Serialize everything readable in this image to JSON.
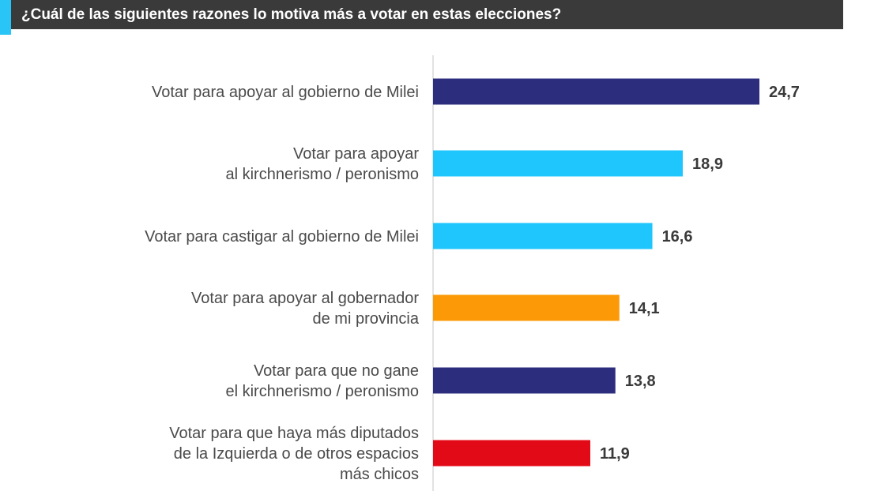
{
  "header": {
    "title": "¿Cuál de las siguientes razones lo motiva más a votar en estas elecciones?"
  },
  "colors": {
    "navy": "#2d2d7d",
    "cyan": "#1fc6fd",
    "orange": "#fb9a06",
    "red": "#e30a17",
    "header_bg": "#3a3a3a",
    "header_accent": "#29c5f6"
  },
  "chart_data": {
    "type": "bar",
    "orientation": "horizontal",
    "title": "¿Cuál de las siguientes razones lo motiva más a votar en estas elecciones?",
    "xlim": [
      0,
      25
    ],
    "grid": false,
    "categories": [
      [
        "Votar para apoyar al gobierno de Milei"
      ],
      [
        "Votar para apoyar",
        "al kirchnerismo / peronismo"
      ],
      [
        "Votar para castigar al gobierno de Milei"
      ],
      [
        "Votar para apoyar al gobernador",
        "de mi provincia"
      ],
      [
        "Votar para que no gane",
        "el kirchnerismo / peronismo"
      ],
      [
        "Votar para que haya más diputados",
        "de la Izquierda o de otros espacios",
        "más chicos"
      ]
    ],
    "values": [
      24.7,
      18.9,
      16.6,
      14.1,
      13.8,
      11.9
    ],
    "value_labels": [
      "24,7",
      "18,9",
      "16,6",
      "14,1",
      "13,8",
      "11,9"
    ],
    "bar_colors": [
      "#2d2d7d",
      "#1fc6fd",
      "#1fc6fd",
      "#fb9a06",
      "#2d2d7d",
      "#e30a17"
    ]
  }
}
